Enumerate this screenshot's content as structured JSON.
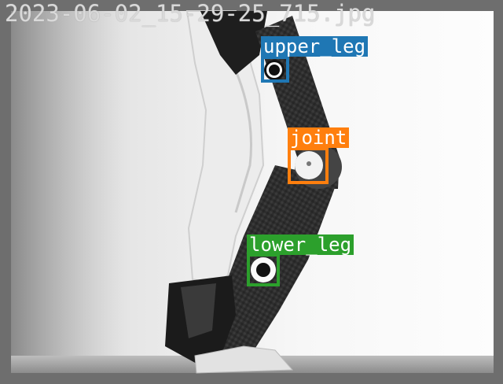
{
  "image": {
    "filename": "2023-06-02_15-29-25_715.jpg"
  },
  "detections": [
    {
      "label": "upper_leg",
      "color": "#1f77b4"
    },
    {
      "label": "joint",
      "color": "#ff7f0e"
    },
    {
      "label": "lower_leg",
      "color": "#2ca02c"
    }
  ]
}
